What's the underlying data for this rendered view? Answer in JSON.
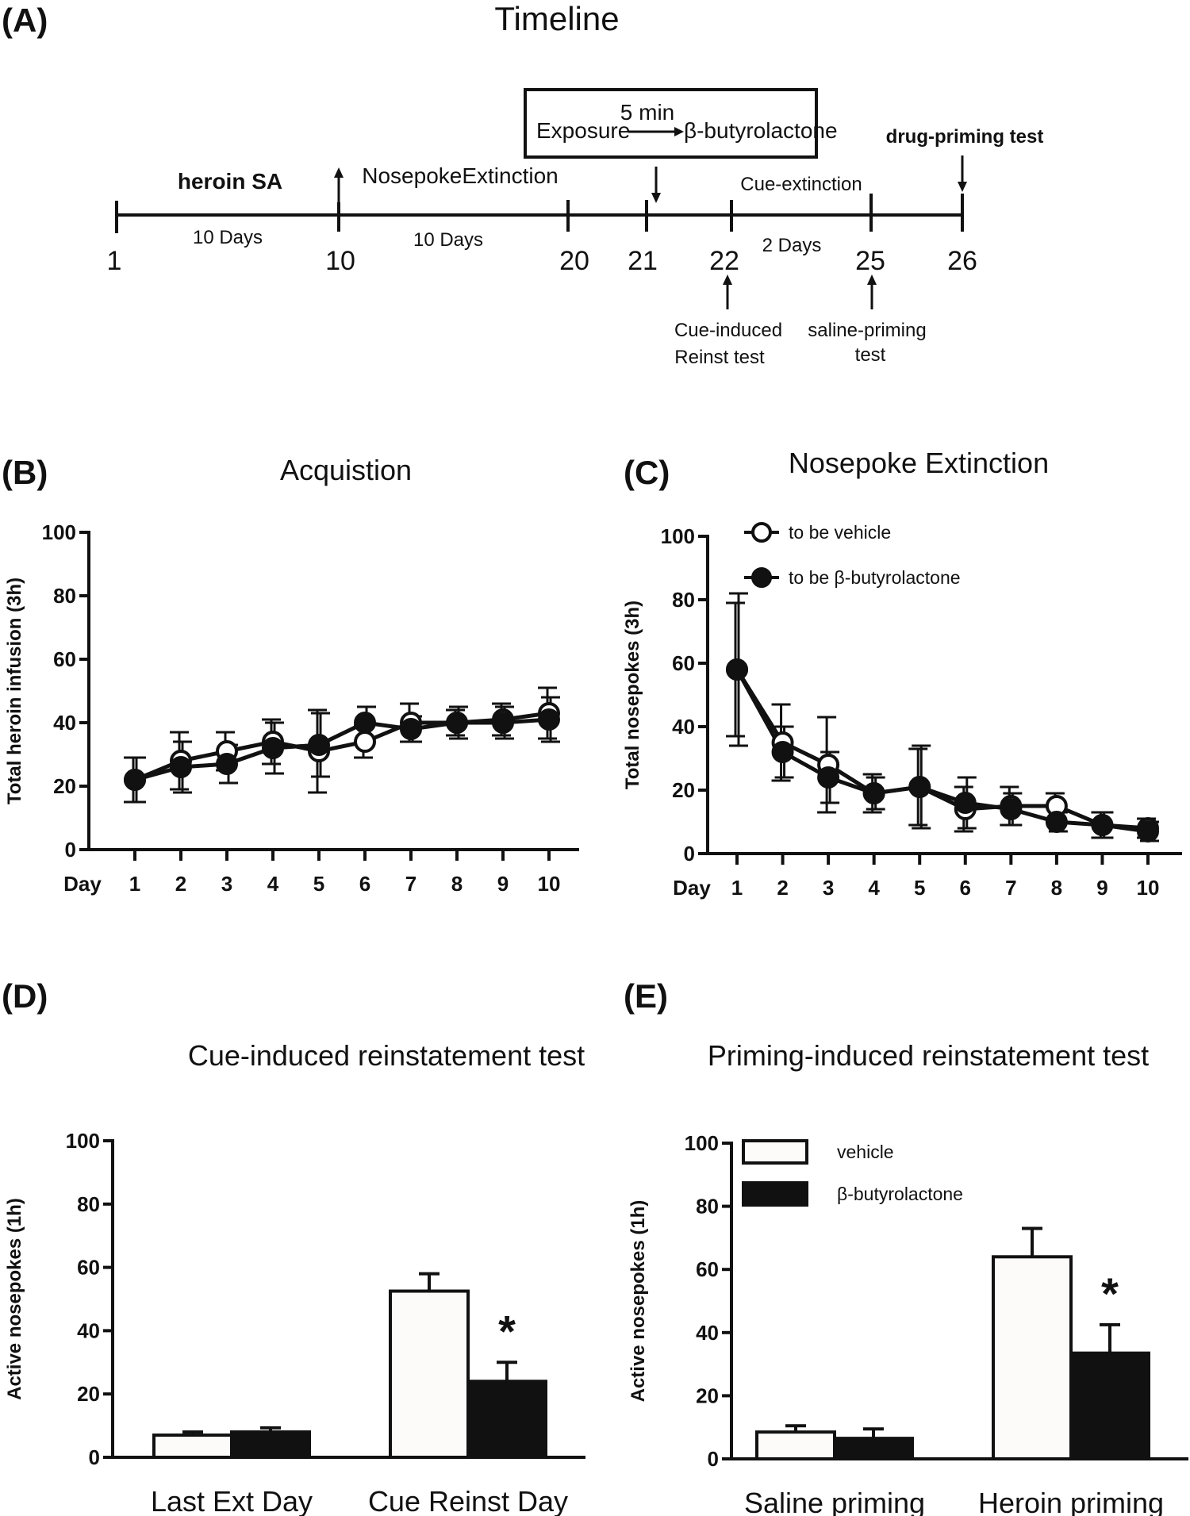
{
  "panels": {
    "A": "(A)",
    "B": "(B)",
    "C": "(C)",
    "D": "(D)",
    "E": "(E)"
  },
  "timeline": {
    "title": "Timeline",
    "phase_heroin": "heroin SA",
    "phase_extinction": "NosepokeExtinction",
    "days_10a": "10 Days",
    "days_10b": "10 Days",
    "days_2": "2 Days",
    "cue_extinction": "Cue-extinction",
    "drug_priming_test": "drug-priming test",
    "box_exposure": "Exposure",
    "box_time": "5 min",
    "box_compound": "β-butyrolactone",
    "day_numbers": [
      "1",
      "10",
      "20",
      "21",
      "22",
      "25",
      "26"
    ],
    "cue_test_line1": "Cue-induced",
    "cue_test_line2": "Reinst test",
    "saline_test_line1": "saline-priming",
    "saline_test_line2": "test",
    "time_color": "#e3342f"
  },
  "chart_data": [
    {
      "id": "B",
      "type": "line",
      "title": "Acquistion",
      "xlabel": "Day",
      "ylabel": "Total heroin infusion (3h)",
      "ylim": [
        0,
        100
      ],
      "yticks": [
        "0",
        "20",
        "40",
        "60",
        "80",
        "100"
      ],
      "categories": [
        "1",
        "2",
        "3",
        "4",
        "5",
        "6",
        "7",
        "8",
        "9",
        "10"
      ],
      "series": [
        {
          "name": "to be vehicle",
          "marker": "open",
          "values": [
            22,
            28,
            31,
            34,
            31,
            34,
            40,
            40,
            41,
            43
          ],
          "err": [
            7,
            9,
            6,
            7,
            13,
            5,
            6,
            4,
            5,
            8
          ]
        },
        {
          "name": "to be β-butyrolactone",
          "marker": "filled",
          "values": [
            22,
            26,
            27,
            32,
            33,
            40,
            38,
            40,
            40,
            41
          ],
          "err": [
            7,
            8,
            6,
            8,
            10,
            5,
            4,
            5,
            5,
            7
          ]
        }
      ]
    },
    {
      "id": "C",
      "type": "line",
      "title": "Nosepoke Extinction",
      "xlabel": "Day",
      "ylabel": "Total nosepokes (3h)",
      "ylim": [
        0,
        100
      ],
      "yticks": [
        "0",
        "20",
        "40",
        "60",
        "80",
        "100"
      ],
      "categories": [
        "1",
        "2",
        "3",
        "4",
        "5",
        "6",
        "7",
        "8",
        "9",
        "10"
      ],
      "legend": [
        "to be vehicle",
        "to be β-butyrolactone"
      ],
      "series": [
        {
          "name": "to be vehicle",
          "marker": "open",
          "values": [
            58,
            35,
            28,
            19,
            21,
            14,
            15,
            15,
            9,
            8
          ],
          "err": [
            21,
            12,
            15,
            6,
            12,
            7,
            6,
            4,
            4,
            3
          ]
        },
        {
          "name": "to be β-butyrolactone",
          "marker": "filled",
          "values": [
            58,
            32,
            24,
            19,
            21,
            16,
            14,
            10,
            9,
            7
          ],
          "err": [
            24,
            8,
            8,
            5,
            13,
            8,
            5,
            3,
            4,
            3
          ]
        }
      ]
    },
    {
      "id": "D",
      "type": "bar",
      "title": "Cue-induced reinstatement test",
      "ylabel": "Active nosepokes (1h)",
      "ylim": [
        0,
        100
      ],
      "yticks": [
        "0",
        "20",
        "40",
        "60",
        "80",
        "100"
      ],
      "categories": [
        "Last Ext Day",
        "Cue Reinst Day"
      ],
      "series": [
        {
          "name": "vehicle",
          "values": [
            7,
            52.5
          ],
          "err": [
            1,
            5.5
          ]
        },
        {
          "name": "β-butyrolactone",
          "values": [
            8,
            24
          ],
          "err": [
            1.3,
            6
          ]
        }
      ],
      "significance": "*"
    },
    {
      "id": "E",
      "type": "bar",
      "title": "Priming-induced reinstatement test",
      "ylabel": "Active nosepokes (1h)",
      "ylim": [
        0,
        100
      ],
      "yticks": [
        "0",
        "20",
        "40",
        "60",
        "80",
        "100"
      ],
      "categories": [
        "Saline priming",
        "Heroin priming"
      ],
      "legend": [
        "vehicle",
        "β-butyrolactone"
      ],
      "series": [
        {
          "name": "vehicle",
          "values": [
            8.5,
            64
          ],
          "err": [
            2,
            9
          ]
        },
        {
          "name": "β-butyrolactone",
          "values": [
            6.5,
            33.5
          ],
          "err": [
            3,
            9
          ]
        }
      ],
      "significance": "*"
    }
  ]
}
